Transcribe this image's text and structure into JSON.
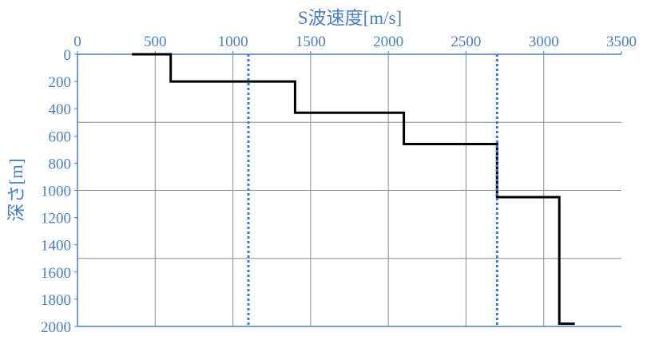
{
  "chart_data": {
    "type": "line",
    "xlabel": "S波速度[m/s]",
    "ylabel": "深さ[m]",
    "xlim": [
      0,
      3500
    ],
    "ylim": [
      0,
      2000
    ],
    "y_inverted": true,
    "x_axis_position": "top",
    "x_ticks": [
      0,
      500,
      1000,
      1500,
      2000,
      2500,
      3000,
      3500
    ],
    "y_ticks": [
      0,
      200,
      400,
      600,
      800,
      1000,
      1200,
      1400,
      1600,
      1800,
      2000
    ],
    "x_tick_labels": [
      "0",
      "500",
      "1000",
      "1500",
      "2000",
      "2500",
      "3000",
      "3500"
    ],
    "y_tick_labels": [
      "0",
      "200",
      "400",
      "600",
      "800",
      "1000",
      "1200",
      "1400",
      "1600",
      "1800",
      "2000"
    ],
    "vertical_gridlines": [
      500,
      1000,
      1500,
      2000,
      2500,
      3000
    ],
    "horizontal_gridlines": [
      500,
      1000,
      1500,
      2000
    ],
    "grid": true,
    "colors": {
      "axis": "#4a7fc1",
      "grid": "#8c8c8c",
      "profile": "#000000",
      "dotted": "#3a78d8"
    },
    "series": [
      {
        "style": "solid-step",
        "points": [
          [
            350,
            0
          ],
          [
            600,
            0
          ],
          [
            600,
            200
          ],
          [
            1400,
            200
          ],
          [
            1400,
            430
          ],
          [
            2100,
            430
          ],
          [
            2100,
            660
          ],
          [
            2700,
            660
          ],
          [
            2700,
            1050
          ],
          [
            3100,
            1050
          ],
          [
            3100,
            1980
          ],
          [
            3200,
            1980
          ]
        ]
      },
      {
        "style": "dotted",
        "x": 1100,
        "y_range": [
          0,
          2000
        ]
      },
      {
        "style": "dotted",
        "x": 2700,
        "y_range": [
          0,
          2000
        ]
      }
    ]
  }
}
